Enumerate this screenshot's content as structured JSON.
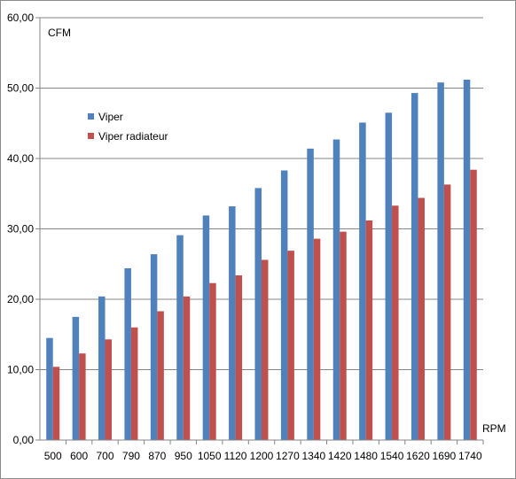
{
  "chart_data": {
    "type": "bar",
    "xlabel": "RPM",
    "ylabel": "CFM",
    "ylim": [
      0,
      60
    ],
    "yticks": [
      "0,00",
      "10,00",
      "20,00",
      "30,00",
      "40,00",
      "50,00",
      "60,00"
    ],
    "grid": true,
    "legend_position": "upper-left",
    "categories": [
      "500",
      "600",
      "700",
      "790",
      "870",
      "950",
      "1050",
      "1120",
      "1200",
      "1270",
      "1340",
      "1420",
      "1480",
      "1540",
      "1620",
      "1690",
      "1740"
    ],
    "series": [
      {
        "name": "Viper",
        "color": "#4f81bd",
        "values": [
          14.5,
          17.5,
          20.4,
          24.4,
          26.4,
          29.1,
          31.9,
          33.2,
          35.8,
          38.3,
          41.4,
          42.7,
          45.1,
          46.5,
          49.3,
          50.8,
          51.2
        ]
      },
      {
        "name": "Viper radiateur",
        "color": "#c0504d",
        "values": [
          10.4,
          12.3,
          14.3,
          16.0,
          18.3,
          20.4,
          22.3,
          23.4,
          25.6,
          26.9,
          28.6,
          29.6,
          31.2,
          33.3,
          34.4,
          36.3,
          38.4
        ]
      }
    ]
  }
}
